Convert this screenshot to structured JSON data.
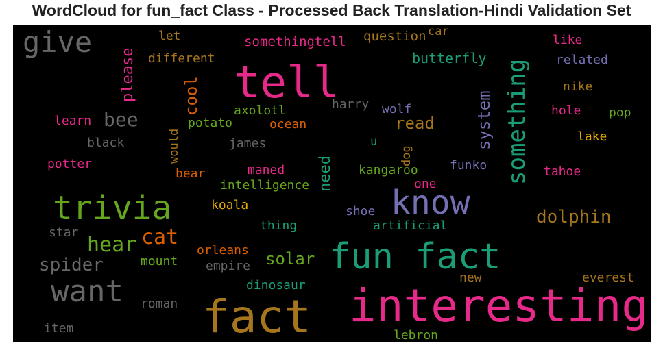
{
  "title": "WordCloud for fun_fact Class - Processed Back Translation-Hindi Validation Set",
  "chart_data": {
    "type": "wordcloud",
    "title": "WordCloud for fun_fact Class - Processed Back Translation-Hindi Validation Set",
    "background": "#000000",
    "words": [
      {
        "text": "interesting",
        "color": "#e7298a",
        "weight": 66
      },
      {
        "text": "fact",
        "color": "#a6761d",
        "weight": 66
      },
      {
        "text": "tell",
        "color": "#e7298a",
        "weight": 64
      },
      {
        "text": "fun fact",
        "color": "#1b9e77",
        "weight": 52
      },
      {
        "text": "know",
        "color": "#7570b3",
        "weight": 48
      },
      {
        "text": "trivia",
        "color": "#66a61e",
        "weight": 48
      },
      {
        "text": "want",
        "color": "#666666",
        "weight": 44
      },
      {
        "text": "give",
        "color": "#666666",
        "weight": 42
      },
      {
        "text": "something",
        "color": "#1b9e77",
        "weight": 34
      },
      {
        "text": "cat",
        "color": "#d95f02",
        "weight": 30
      },
      {
        "text": "hear",
        "color": "#66a61e",
        "weight": 30
      },
      {
        "text": "bee",
        "color": "#666666",
        "weight": 28
      },
      {
        "text": "dolphin",
        "color": "#a6761d",
        "weight": 26
      },
      {
        "text": "spider",
        "color": "#666666",
        "weight": 26
      },
      {
        "text": "solar",
        "color": "#66a61e",
        "weight": 24
      },
      {
        "text": "read",
        "color": "#a6761d",
        "weight": 24
      },
      {
        "text": "system",
        "color": "#7570b3",
        "weight": 24
      },
      {
        "text": "cool",
        "color": "#d95f02",
        "weight": 24
      },
      {
        "text": "please",
        "color": "#e7298a",
        "weight": 22
      },
      {
        "text": "need",
        "color": "#1b9e77",
        "weight": 22
      },
      {
        "text": "butterfly",
        "color": "#1b9e77",
        "weight": 20
      },
      {
        "text": "somethingtell",
        "color": "#e7298a",
        "weight": 19
      },
      {
        "text": "question",
        "color": "#a6761d",
        "weight": 19
      },
      {
        "text": "different",
        "color": "#a6761d",
        "weight": 18
      },
      {
        "text": "related",
        "color": "#7570b3",
        "weight": 18
      },
      {
        "text": "like",
        "color": "#e7298a",
        "weight": 18
      },
      {
        "text": "let",
        "color": "#a6761d",
        "weight": 18
      },
      {
        "text": "axolotl",
        "color": "#66a61e",
        "weight": 18
      },
      {
        "text": "harry",
        "color": "#666666",
        "weight": 18
      },
      {
        "text": "wolf",
        "color": "#7570b3",
        "weight": 18
      },
      {
        "text": "hole",
        "color": "#e7298a",
        "weight": 18
      },
      {
        "text": "pop",
        "color": "#66a61e",
        "weight": 18
      },
      {
        "text": "nike",
        "color": "#a6761d",
        "weight": 18
      },
      {
        "text": "learn",
        "color": "#e7298a",
        "weight": 18
      },
      {
        "text": "potato",
        "color": "#66a61e",
        "weight": 18
      },
      {
        "text": "ocean",
        "color": "#d95f02",
        "weight": 18
      },
      {
        "text": "lake",
        "color": "#e6ab02",
        "weight": 18
      },
      {
        "text": "black",
        "color": "#666666",
        "weight": 18
      },
      {
        "text": "james",
        "color": "#666666",
        "weight": 18
      },
      {
        "text": "would",
        "color": "#a6761d",
        "weight": 17
      },
      {
        "text": "u",
        "color": "#1b9e77",
        "weight": 17
      },
      {
        "text": "dog",
        "color": "#a6761d",
        "weight": 17
      },
      {
        "text": "potter",
        "color": "#e7298a",
        "weight": 18
      },
      {
        "text": "maned",
        "color": "#e7298a",
        "weight": 18
      },
      {
        "text": "kangaroo",
        "color": "#66a61e",
        "weight": 18
      },
      {
        "text": "funko",
        "color": "#7570b3",
        "weight": 18
      },
      {
        "text": "bear",
        "color": "#d95f02",
        "weight": 18
      },
      {
        "text": "tahoe",
        "color": "#e7298a",
        "weight": 18
      },
      {
        "text": "intelligence",
        "color": "#66a61e",
        "weight": 18
      },
      {
        "text": "one",
        "color": "#e7298a",
        "weight": 18
      },
      {
        "text": "koala",
        "color": "#e6ab02",
        "weight": 18
      },
      {
        "text": "shoe",
        "color": "#7570b3",
        "weight": 18
      },
      {
        "text": "thing",
        "color": "#1b9e77",
        "weight": 18
      },
      {
        "text": "artificial",
        "color": "#1b9e77",
        "weight": 18
      },
      {
        "text": "star",
        "color": "#666666",
        "weight": 18
      },
      {
        "text": "orleans",
        "color": "#d95f02",
        "weight": 18
      },
      {
        "text": "mount",
        "color": "#66a61e",
        "weight": 18
      },
      {
        "text": "empire",
        "color": "#666666",
        "weight": 18
      },
      {
        "text": "new",
        "color": "#a6761d",
        "weight": 18
      },
      {
        "text": "everest",
        "color": "#a6761d",
        "weight": 18
      },
      {
        "text": "dinosaur",
        "color": "#1b9e77",
        "weight": 18
      },
      {
        "text": "roman",
        "color": "#666666",
        "weight": 18
      },
      {
        "text": "item",
        "color": "#666666",
        "weight": 18
      },
      {
        "text": "lebron",
        "color": "#66a61e",
        "weight": 18
      },
      {
        "text": "car",
        "color": "#a6761d",
        "weight": 17
      }
    ]
  }
}
